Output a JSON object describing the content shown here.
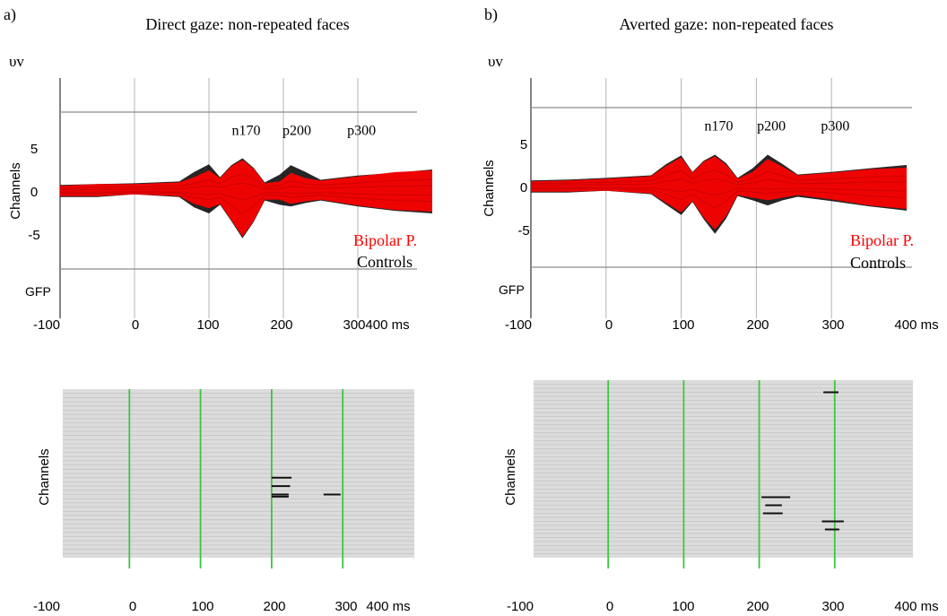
{
  "colors": {
    "bipolar": "#ff0000",
    "controls": "#000000",
    "grid": "#b4b4b4",
    "raster_bg": "#dcdcdc",
    "raster_line": "#c4c4c4",
    "raster_marker": "#3cc83c"
  },
  "chart_data": [
    {
      "type": "line",
      "panel_label": "a)",
      "title": "Direct gaze: non-repeated faces",
      "unit_label": "υv",
      "ylabel": "Channels",
      "gfp_label": "GFP",
      "x_unit": "ms",
      "x": [
        -100,
        0,
        100,
        200,
        300,
        400
      ],
      "ylim": [
        -8,
        9
      ],
      "y_ticks": [
        5,
        0,
        -5
      ],
      "peak_labels": [
        {
          "text": "n170",
          "x": 150,
          "y": 6.5
        },
        {
          "text": "p200",
          "x": 218,
          "y": 6.5
        },
        {
          "text": "p300",
          "x": 305,
          "y": 6.5
        }
      ],
      "legend": [
        "Bipolar P.",
        "Controls"
      ],
      "series": [
        {
          "name": "Bipolar P.",
          "x": [
            -100,
            -50,
            0,
            60,
            80,
            100,
            115,
            130,
            145,
            160,
            175,
            195,
            210,
            230,
            250,
            300,
            350,
            400
          ],
          "upper": [
            0.6,
            0.8,
            0.8,
            1.0,
            1.6,
            2.4,
            1.5,
            2.9,
            3.6,
            2.6,
            0.9,
            1.1,
            2.1,
            1.5,
            1.2,
            1.7,
            2.2,
            2.4
          ],
          "lower": [
            -0.6,
            -0.6,
            -0.4,
            -0.6,
            -1.5,
            -2.0,
            -1.5,
            -3.4,
            -5.3,
            -3.5,
            -1.0,
            -1.0,
            -1.5,
            -1.2,
            -1.0,
            -1.7,
            -2.2,
            -2.4
          ]
        },
        {
          "name": "Controls",
          "x": [
            -100,
            -50,
            0,
            60,
            80,
            100,
            115,
            130,
            145,
            160,
            175,
            195,
            210,
            230,
            250,
            300,
            350,
            400
          ],
          "upper": [
            0.7,
            0.8,
            0.9,
            1.1,
            2.2,
            3.1,
            1.6,
            3.0,
            3.8,
            2.7,
            1.0,
            1.9,
            3.0,
            2.2,
            1.3,
            1.8,
            2.1,
            2.5
          ],
          "lower": [
            -0.7,
            -0.7,
            -0.4,
            -0.7,
            -1.9,
            -2.6,
            -1.6,
            -3.5,
            -5.5,
            -3.6,
            -1.1,
            -1.6,
            -1.8,
            -1.4,
            -1.1,
            -1.8,
            -2.3,
            -2.6
          ]
        }
      ]
    },
    {
      "type": "line",
      "panel_label": "b)",
      "title": "Averted gaze: non-repeated faces",
      "unit_label": "υv",
      "ylabel": "Channels",
      "gfp_label": "GFP",
      "x_unit": "ms",
      "x": [
        -100,
        0,
        100,
        200,
        300,
        400
      ],
      "ylim": [
        -8,
        9
      ],
      "y_ticks": [
        5,
        0,
        -5
      ],
      "peak_labels": [
        {
          "text": "n170",
          "x": 150,
          "y": 6.5
        },
        {
          "text": "p200",
          "x": 220,
          "y": 6.5
        },
        {
          "text": "p300",
          "x": 305,
          "y": 6.5
        }
      ],
      "legend": [
        "Bipolar P.",
        "Controls"
      ],
      "series": [
        {
          "name": "Bipolar P.",
          "x": [
            -100,
            -50,
            0,
            60,
            80,
            100,
            115,
            130,
            145,
            160,
            175,
            195,
            215,
            235,
            255,
            300,
            350,
            400
          ],
          "upper": [
            0.6,
            0.7,
            0.9,
            1.2,
            2.4,
            3.4,
            1.6,
            2.9,
            3.5,
            2.5,
            0.9,
            1.7,
            3.2,
            2.3,
            1.3,
            1.6,
            2.0,
            2.2
          ],
          "lower": [
            -0.6,
            -0.6,
            -0.5,
            -0.8,
            -1.9,
            -3.0,
            -1.7,
            -3.6,
            -5.0,
            -3.4,
            -1.0,
            -1.3,
            -1.6,
            -1.3,
            -1.0,
            -1.5,
            -2.2,
            -2.6
          ]
        },
        {
          "name": "Controls",
          "x": [
            -100,
            -50,
            0,
            60,
            80,
            100,
            115,
            130,
            145,
            160,
            175,
            195,
            215,
            235,
            255,
            300,
            350,
            400
          ],
          "upper": [
            0.7,
            0.8,
            1.0,
            1.3,
            2.6,
            3.6,
            1.7,
            3.0,
            3.7,
            2.7,
            1.0,
            2.1,
            3.7,
            2.6,
            1.4,
            1.7,
            2.1,
            2.5
          ],
          "lower": [
            -0.7,
            -0.7,
            -0.5,
            -0.9,
            -2.1,
            -3.3,
            -1.8,
            -3.8,
            -5.5,
            -3.7,
            -1.1,
            -1.6,
            -2.2,
            -1.6,
            -1.2,
            -1.7,
            -2.3,
            -2.8
          ]
        }
      ]
    },
    {
      "type": "raster",
      "ylabel": "Channels",
      "x_unit": "ms",
      "x": [
        -100,
        0,
        100,
        200,
        300,
        400
      ],
      "marker_times": [
        0,
        100,
        200,
        300
      ],
      "channel_count": 40,
      "significant_segments": [
        {
          "channel": 21,
          "start": 200,
          "end": 228
        },
        {
          "channel": 23,
          "start": 200,
          "end": 226
        },
        {
          "channel": 25,
          "start": 200,
          "end": 224
        },
        {
          "channel": 25.5,
          "start": 200,
          "end": 224
        },
        {
          "channel": 25,
          "start": 273,
          "end": 297
        }
      ]
    },
    {
      "type": "raster",
      "ylabel": "Channels",
      "x_unit": "ms",
      "x": [
        -100,
        0,
        100,
        200,
        300,
        400
      ],
      "marker_times": [
        0,
        100,
        200,
        300
      ],
      "channel_count": 44,
      "significant_segments": [
        {
          "channel": 3,
          "start": 285,
          "end": 305
        },
        {
          "channel": 29,
          "start": 203,
          "end": 241
        },
        {
          "channel": 31,
          "start": 208,
          "end": 230
        },
        {
          "channel": 33,
          "start": 205,
          "end": 231
        },
        {
          "channel": 35,
          "start": 283,
          "end": 312
        },
        {
          "channel": 37,
          "start": 287,
          "end": 306
        }
      ]
    }
  ]
}
